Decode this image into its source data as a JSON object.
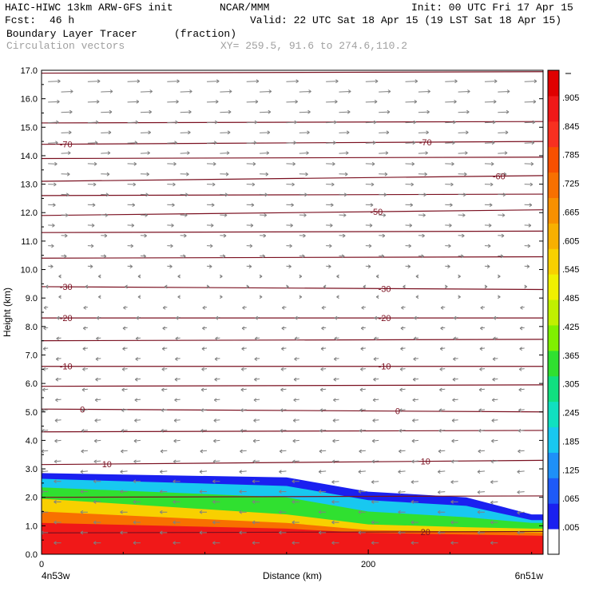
{
  "header": {
    "model": "HAIC-HIWC 13km ARW-GFS init",
    "org": "NCAR/MMM",
    "init": "Init: 00 UTC Fri 17 Apr 15",
    "fcst_label": "Fcst:",
    "fcst_value": "46 h",
    "valid": "Valid: 22 UTC Sat 18 Apr 15 (19 LST Sat 18 Apr 15)",
    "field": "Boundary Layer Tracer",
    "units": "(fraction)",
    "overlay": "Circulation vectors",
    "xy": "XY= 259.5, 91.6 to 274.6,110.2"
  },
  "colors": {
    "contour": "#7a1020",
    "vector": "#808080",
    "frame": "#000000"
  },
  "chart_data": {
    "type": "heatmap",
    "title": "Boundary Layer Tracer",
    "units": "(fraction)",
    "ylabel": "Height (km)",
    "xlabel": "Distance (km)",
    "xlim": [
      0,
      307
    ],
    "ylim": [
      0,
      17
    ],
    "x_ticks": [
      0,
      200
    ],
    "y_ticks": [
      "0.0",
      "1.0",
      "2.0",
      "3.0",
      "4.0",
      "5.0",
      "6.0",
      "7.0",
      "8.0",
      "9.0",
      "10.0",
      "11.0",
      "12.0",
      "13.0",
      "14.0",
      "15.0",
      "16.0",
      "17.0"
    ],
    "x_endpoints": {
      "left": "4n53w",
      "right": "6n51w"
    },
    "colorbar": {
      "labels": [
        ".005",
        ".065",
        ".125",
        ".185",
        ".245",
        ".305",
        ".365",
        ".425",
        ".485",
        ".545",
        ".605",
        ".665",
        ".725",
        ".785",
        ".845",
        ".905"
      ],
      "colors": [
        "#ffffff",
        "#1a20f0",
        "#1e5af8",
        "#1e90f8",
        "#18c8f0",
        "#10e0c0",
        "#10e080",
        "#30e030",
        "#80f000",
        "#c0f000",
        "#f0f000",
        "#f8d000",
        "#f8b000",
        "#f89000",
        "#f87000",
        "#f85000",
        "#f83020",
        "#f01818",
        "#e00000"
      ]
    },
    "tracer_bands": [
      {
        "level": "0.005-0.065",
        "color": "#1a20f0",
        "top_km": [
          [
            0,
            2.85
          ],
          [
            150,
            2.7
          ],
          [
            200,
            2.2
          ],
          [
            260,
            2.0
          ],
          [
            300,
            1.4
          ],
          [
            307,
            1.4
          ]
        ]
      },
      {
        "level": "0.125-0.185",
        "color": "#18c8f0",
        "top_km": [
          [
            0,
            2.65
          ],
          [
            150,
            2.4
          ],
          [
            200,
            1.9
          ],
          [
            260,
            1.7
          ],
          [
            300,
            1.2
          ],
          [
            307,
            1.2
          ]
        ]
      },
      {
        "level": "0.365-0.425",
        "color": "#30e030",
        "top_km": [
          [
            0,
            2.35
          ],
          [
            150,
            2.0
          ],
          [
            200,
            1.5
          ],
          [
            260,
            1.3
          ],
          [
            300,
            1.1
          ],
          [
            307,
            1.1
          ]
        ]
      },
      {
        "level": "0.605-0.665",
        "color": "#f8d000",
        "top_km": [
          [
            0,
            1.95
          ],
          [
            150,
            1.4
          ],
          [
            200,
            1.05
          ],
          [
            260,
            0.95
          ],
          [
            300,
            0.9
          ],
          [
            307,
            0.9
          ]
        ]
      },
      {
        "level": "0.845-0.905",
        "color": "#f87000",
        "top_km": [
          [
            0,
            1.5
          ],
          [
            150,
            1.1
          ],
          [
            200,
            0.85
          ],
          [
            260,
            0.8
          ],
          [
            307,
            0.75
          ]
        ]
      },
      {
        "level": "0.965-1.0",
        "color": "#f01818",
        "top_km": [
          [
            0,
            1.1
          ],
          [
            150,
            0.9
          ],
          [
            200,
            0.75
          ],
          [
            307,
            0.65
          ]
        ]
      }
    ],
    "temperature_contours": [
      {
        "label": "-70",
        "y_km": [
          14.4,
          14.5
        ],
        "label_at_km": [
          15,
          235
        ]
      },
      {
        "label": "-60",
        "y_km": [
          13.1,
          13.3
        ],
        "label_at_km": [
          280
        ]
      },
      {
        "label": "-50",
        "y_km": [
          11.9,
          12.1
        ],
        "label_at_km": [
          205
        ]
      },
      {
        "label": "-30",
        "y_km": [
          9.4,
          9.3
        ],
        "label_at_km": [
          15,
          210
        ]
      },
      {
        "label": "-20",
        "y_km": [
          8.3,
          8.3
        ],
        "label_at_km": [
          15,
          210
        ]
      },
      {
        "label": "-10",
        "y_km": [
          6.6,
          6.6
        ],
        "label_at_km": [
          15,
          210
        ]
      },
      {
        "label": "0",
        "y_km": [
          5.1,
          5.0
        ],
        "label_at_km": [
          25,
          218
        ]
      },
      {
        "label": "10",
        "y_km": [
          3.15,
          3.3
        ],
        "label_at_km": [
          40,
          235
        ]
      },
      {
        "label": "20",
        "y_km": [
          0.75,
          0.8
        ],
        "label_at_km": [
          235
        ]
      }
    ],
    "unlabeled_contours_km": [
      16.9,
      15.15,
      13.9,
      12.6,
      11.3,
      10.4,
      7.5,
      5.9,
      4.3,
      2.0
    ],
    "wind_regime_km": {
      "westerly_above": 10.0,
      "easterly_below": 9.0
    }
  }
}
